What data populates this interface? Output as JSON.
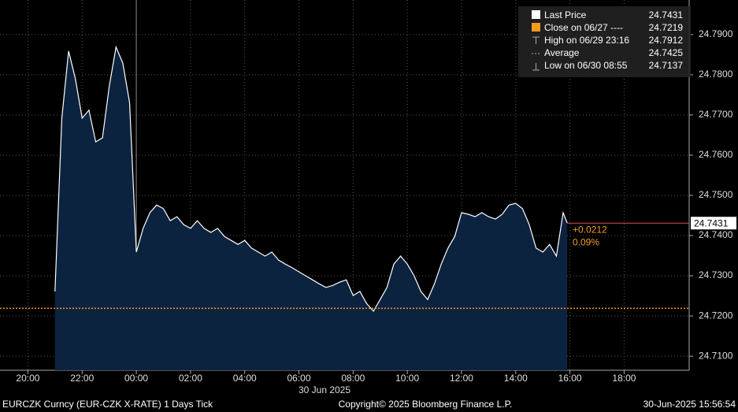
{
  "chart_data": {
    "type": "area",
    "series": [
      {
        "name": "Last Price",
        "color": "#ffffff",
        "fill": "#0c2340",
        "x": [
          -3,
          -2.75,
          -2.5,
          -2.25,
          -2,
          -1.75,
          -1.5,
          -1.25,
          -1,
          -0.75,
          -0.5,
          -0.25,
          0,
          0.25,
          0.5,
          0.75,
          1,
          1.25,
          1.5,
          1.75,
          2,
          2.25,
          2.5,
          2.75,
          3,
          3.25,
          3.5,
          3.75,
          4,
          4.25,
          4.5,
          4.75,
          5,
          5.25,
          5.5,
          5.75,
          6,
          6.25,
          6.5,
          6.75,
          7,
          7.25,
          7.5,
          7.75,
          8,
          8.25,
          8.5,
          8.75,
          9,
          9.25,
          9.5,
          9.75,
          10,
          10.25,
          10.5,
          10.75,
          11,
          11.25,
          11.5,
          11.75,
          12,
          12.25,
          12.5,
          12.75,
          13,
          13.25,
          13.5,
          13.75,
          14,
          14.25,
          14.5,
          14.75,
          15,
          15.25,
          15.5,
          15.75,
          15.9
        ],
        "values": [
          24.7261,
          24.7692,
          24.7859,
          24.779,
          24.7692,
          24.7712,
          24.7633,
          24.7643,
          24.7771,
          24.7869,
          24.7829,
          24.7731,
          24.7359,
          24.7418,
          24.7457,
          24.7476,
          24.7467,
          24.7437,
          24.7447,
          24.7427,
          24.7418,
          24.7437,
          24.7418,
          24.7408,
          24.7418,
          24.7398,
          24.7388,
          24.7378,
          24.7388,
          24.7369,
          24.7359,
          24.7349,
          24.7359,
          24.7339,
          24.7329,
          24.732,
          24.731,
          24.73,
          24.729,
          24.728,
          24.7271,
          24.7276,
          24.7284,
          24.729,
          24.7251,
          24.7261,
          24.7231,
          24.7212,
          24.7241,
          24.7271,
          24.7329,
          24.7349,
          24.7329,
          24.73,
          24.7261,
          24.7241,
          24.728,
          24.7329,
          24.7369,
          24.7398,
          24.7457,
          24.7453,
          24.7447,
          24.7457,
          24.7447,
          24.7441,
          24.7453,
          24.7476,
          24.748,
          24.7467,
          24.7427,
          24.7369,
          24.7359,
          24.7378,
          24.7349,
          24.7457,
          24.7431
        ]
      }
    ],
    "close": {
      "value": 24.7219,
      "color": "#f39c1e"
    },
    "last_price": 24.7431,
    "change": "+0.0212",
    "change_pct": "0.09%",
    "xlim": [
      -5.03,
      20.4
    ],
    "xticks": [
      {
        "value": -4,
        "label": "20:00"
      },
      {
        "value": -2,
        "label": "22:00"
      },
      {
        "value": 0,
        "label": "00:00"
      },
      {
        "value": 2,
        "label": "02:00"
      },
      {
        "value": 4,
        "label": "04:00"
      },
      {
        "value": 6,
        "label": "06:00"
      },
      {
        "value": 8,
        "label": "08:00"
      },
      {
        "value": 10,
        "label": "10:00"
      },
      {
        "value": 12,
        "label": "12:00"
      },
      {
        "value": 14,
        "label": "14:00"
      },
      {
        "value": 16,
        "label": "16:00"
      },
      {
        "value": 18,
        "label": "18:00"
      }
    ],
    "date_label": "30 Jun 2025",
    "ylim": [
      24.7065,
      24.7986
    ],
    "yticks": [
      {
        "value": 24.71,
        "label": "24.7100"
      },
      {
        "value": 24.72,
        "label": "24.7200"
      },
      {
        "value": 24.73,
        "label": "24.7300"
      },
      {
        "value": 24.74,
        "label": "24.7400"
      },
      {
        "value": 24.75,
        "label": "24.7500"
      },
      {
        "value": 24.76,
        "label": "24.7600"
      },
      {
        "value": 24.77,
        "label": "24.7700"
      },
      {
        "value": 24.78,
        "label": "24.7800"
      },
      {
        "value": 24.79,
        "label": "24.7900"
      }
    ],
    "grid": true,
    "legend": [
      {
        "label": "Last Price",
        "value": 24.7431
      },
      {
        "label": "Close on 06/27  ----",
        "value": 24.7219
      },
      {
        "label": "High on 06/29 23:16",
        "value": 24.7912
      },
      {
        "label": "Average",
        "value": 24.7425
      },
      {
        "label": "Low on 06/30 08:55",
        "value": 24.7137
      }
    ]
  },
  "footer": {
    "left": "EURCZK Curncy (EUR-CZK X-RATE) 1 Days  Tick",
    "center": "Copyright© 2025 Bloomberg Finance L.P.",
    "right": "30-Jun-2025 15:56:54"
  }
}
